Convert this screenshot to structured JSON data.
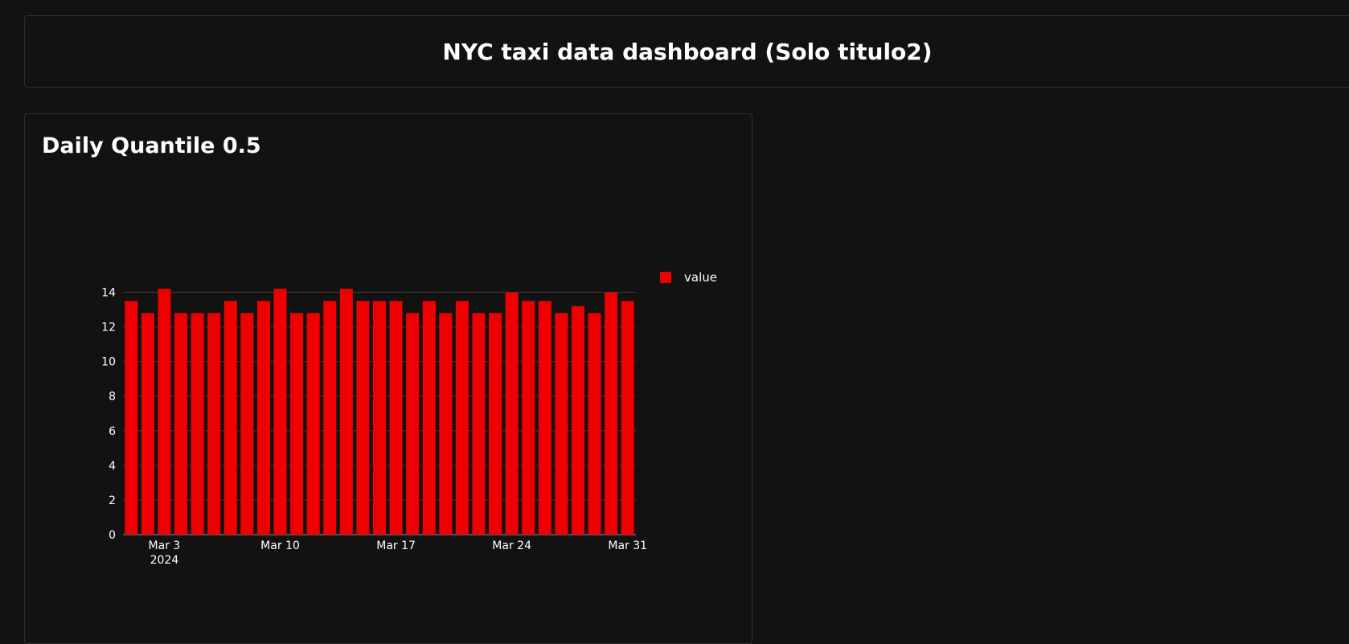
{
  "header": {
    "title": "NYC taxi data dashboard (Solo titulo2)"
  },
  "card": {
    "title": "Daily Quantile 0.5"
  },
  "chart_data": {
    "type": "bar",
    "x": [
      "2024-03-01",
      "2024-03-02",
      "2024-03-03",
      "2024-03-04",
      "2024-03-05",
      "2024-03-06",
      "2024-03-07",
      "2024-03-08",
      "2024-03-09",
      "2024-03-10",
      "2024-03-11",
      "2024-03-12",
      "2024-03-13",
      "2024-03-14",
      "2024-03-15",
      "2024-03-16",
      "2024-03-17",
      "2024-03-18",
      "2024-03-19",
      "2024-03-20",
      "2024-03-21",
      "2024-03-22",
      "2024-03-23",
      "2024-03-24",
      "2024-03-25",
      "2024-03-26",
      "2024-03-27",
      "2024-03-28",
      "2024-03-29",
      "2024-03-30",
      "2024-03-31"
    ],
    "series": [
      {
        "name": "value",
        "color": "#ee0000",
        "values": [
          13.5,
          12.8,
          14.2,
          12.8,
          12.8,
          12.8,
          13.5,
          12.8,
          13.5,
          14.2,
          12.8,
          12.8,
          13.5,
          14.2,
          13.5,
          13.5,
          13.5,
          12.8,
          13.5,
          12.8,
          13.5,
          12.8,
          12.8,
          14.0,
          13.5,
          13.5,
          12.8,
          13.2,
          12.8,
          14.0,
          13.5
        ]
      }
    ],
    "y_ticks": [
      "0",
      "2",
      "4",
      "6",
      "8",
      "10",
      "12",
      "14"
    ],
    "ylim": [
      0,
      14
    ],
    "x_ticks": [
      {
        "date": "2024-03-03",
        "label": "Mar 3",
        "sublabel": "2024"
      },
      {
        "date": "2024-03-10",
        "label": "Mar 10",
        "sublabel": ""
      },
      {
        "date": "2024-03-17",
        "label": "Mar 17",
        "sublabel": ""
      },
      {
        "date": "2024-03-24",
        "label": "Mar 24",
        "sublabel": ""
      },
      {
        "date": "2024-03-31",
        "label": "Mar 31",
        "sublabel": ""
      }
    ],
    "grid": true,
    "legend": "top-right",
    "xlabel": "",
    "ylabel": ""
  }
}
